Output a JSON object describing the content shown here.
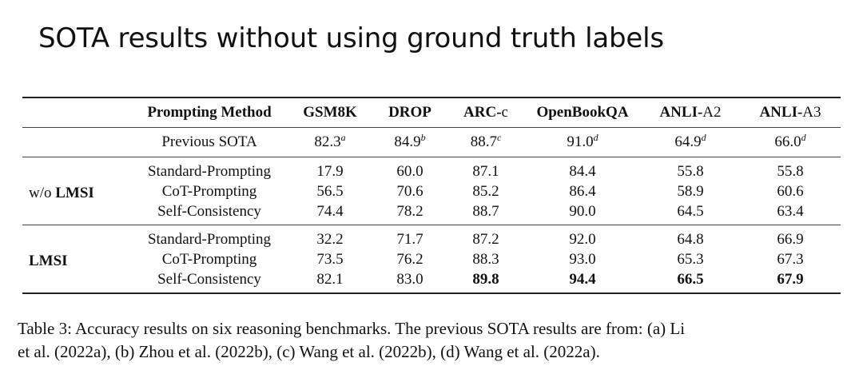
{
  "slide_title": "SOTA results without using ground truth labels",
  "table": {
    "headers": [
      "Prompting Method",
      "GSM8K",
      "DROP",
      "ARC-c",
      "OpenBookQA",
      "ANLI-A2",
      "ANLI-A3"
    ],
    "previous_sota": {
      "method": "Previous SOTA",
      "values": [
        "82.3",
        "84.9",
        "88.7",
        "91.0",
        "64.9",
        "66.0"
      ],
      "superscripts": [
        "a",
        "b",
        "c",
        "d",
        "d",
        "d"
      ]
    },
    "groups": [
      {
        "label_prefix": "w/o ",
        "label_bold": "LMSI",
        "rows": [
          {
            "method": "Standard-Prompting",
            "values": [
              "17.9",
              "60.0",
              "87.1",
              "84.4",
              "55.8",
              "55.8"
            ]
          },
          {
            "method": "CoT-Prompting",
            "values": [
              "56.5",
              "70.6",
              "85.2",
              "86.4",
              "58.9",
              "60.6"
            ]
          },
          {
            "method": "Self-Consistency",
            "values": [
              "74.4",
              "78.2",
              "88.7",
              "90.0",
              "64.5",
              "63.4"
            ]
          }
        ]
      },
      {
        "label_prefix": "",
        "label_bold": "LMSI",
        "rows": [
          {
            "method": "Standard-Prompting",
            "values": [
              "32.2",
              "71.7",
              "87.2",
              "92.0",
              "64.8",
              "66.9"
            ]
          },
          {
            "method": "CoT-Prompting",
            "values": [
              "73.5",
              "76.2",
              "88.3",
              "93.0",
              "65.3",
              "67.3"
            ]
          },
          {
            "method": "Self-Consistency",
            "values": [
              "82.1",
              "83.0",
              "89.8",
              "94.4",
              "66.5",
              "67.9"
            ]
          }
        ]
      }
    ]
  },
  "caption": {
    "line1": "Table 3: Accuracy results on six reasoning benchmarks. The previous SOTA results are from: (a) Li",
    "line2": "et al. (2022a), (b) Zhou et al. (2022b), (c) Wang et al. (2022b), (d) Wang et al. (2022a)."
  }
}
